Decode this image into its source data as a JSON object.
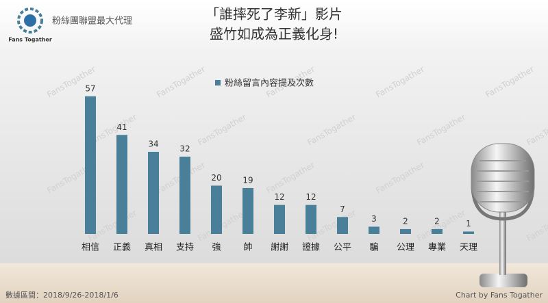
{
  "brand": "粉絲團聯盟最大代理",
  "logo_text": "Fans Togather",
  "watermark": "FansTogather",
  "chart_data": {
    "type": "bar",
    "title": [
      "「誰摔死了李新」影片",
      "盛竹如成為正義化身!"
    ],
    "legend": "粉絲留言內容提及次數",
    "categories": [
      "相信",
      "正義",
      "真相",
      "支持",
      "強",
      "帥",
      "謝謝",
      "證據",
      "公平",
      "騙",
      "公理",
      "專業",
      "天理"
    ],
    "values": [
      57,
      41,
      34,
      32,
      20,
      19,
      12,
      12,
      7,
      3,
      2,
      2,
      1
    ],
    "color": "#4a7f99"
  },
  "footer": {
    "range": "數據區間：2018/9/26-2018/1/6",
    "credit": "Chart by Fans Togather"
  }
}
